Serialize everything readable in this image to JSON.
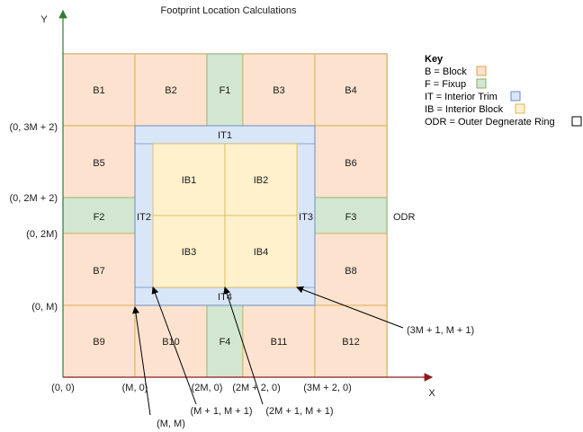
{
  "title": "Footprint Location Calculations",
  "axes": {
    "x_label": "X",
    "y_label": "Y"
  },
  "colors": {
    "block": "#fde3cf",
    "block_border": "#d6a540",
    "fixup": "#d3e6d1",
    "fixup_border": "#82b366",
    "interior_trim": "#d9e6f7",
    "interior_trim_border": "#6c8ebf",
    "interior_block": "#fff1cc",
    "interior_block_border": "#d6b656",
    "axis_x": "#8b1a1a",
    "axis_y": "#2e7d32"
  },
  "cells": {
    "b1": "B1",
    "b2": "B2",
    "f1": "F1",
    "b3": "B3",
    "b4": "B4",
    "b5": "B5",
    "b6": "B6",
    "f2": "F2",
    "f3": "F3",
    "b7": "B7",
    "b8": "B8",
    "b9": "B9",
    "b10": "B10",
    "f4": "F4",
    "b11": "B11",
    "b12": "B12",
    "it1": "IT1",
    "it2": "IT2",
    "it3": "IT3",
    "it4": "IT4",
    "ib1": "IB1",
    "ib2": "IB2",
    "ib3": "IB3",
    "ib4": "IB4"
  },
  "ring_label": "ODR",
  "y_ticks": {
    "t3m2": "(0, 3M + 2)",
    "t2m2": "(0, 2M + 2)",
    "t2m": "(0, 2M)",
    "tm": "(0, M)"
  },
  "x_ticks": {
    "t0": "(0, 0)",
    "tm": "(M, 0)",
    "t2m": "(2M, 0)",
    "t2m2": "(2M + 2, 0)",
    "t3m2": "(3M + 2, 0)"
  },
  "callouts": {
    "m_m": "(M, M)",
    "m1_m1": "(M + 1, M + 1)",
    "2m1_m1": "(2M + 1, M + 1)",
    "3m1_m1": "(3M + 1, M + 1)"
  },
  "key": {
    "title": "Key",
    "items": [
      {
        "text": "B = Block",
        "swatch": "block"
      },
      {
        "text": "F = Fixup",
        "swatch": "fixup"
      },
      {
        "text": "IT = Interior Trim",
        "swatch": "interior_trim"
      },
      {
        "text": "IB = Interior Block",
        "swatch": "interior_block"
      },
      {
        "text": "ODR = Outer Degnerate Ring",
        "swatch": "odr"
      }
    ]
  }
}
